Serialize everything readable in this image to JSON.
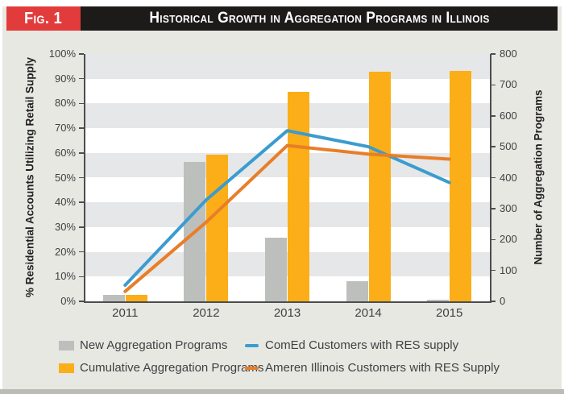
{
  "figure": {
    "tag": "Fig. 1",
    "title": "Historical Growth in Aggregation Programs in Illinois"
  },
  "colors": {
    "header_bar": "#1D1B1A",
    "fig_tag_red": "#E23B3B",
    "background_gray": "#E7E8E2",
    "plot_stripe_gray": "#E6E7E8",
    "axis_text": "#414042"
  },
  "chart_data": {
    "type": "bar",
    "subtype": "combo bar + line, dual y-axes",
    "categories": [
      "2011",
      "2012",
      "2013",
      "2014",
      "2015"
    ],
    "left_axis": {
      "label": "% Residential Accounts Utilizing Retail Supply",
      "min": 0,
      "max": 100,
      "step": 10,
      "tick_suffix": "%",
      "tick_labels": [
        "0%",
        "10%",
        "20%",
        "30%",
        "40%",
        "50%",
        "60%",
        "70%",
        "80%",
        "90%",
        "100%"
      ]
    },
    "right_axis": {
      "label": "Number of Aggregation Programs",
      "min": 0,
      "max": 800,
      "step": 100,
      "tick_labels": [
        "0",
        "100",
        "200",
        "300",
        "400",
        "500",
        "600",
        "700",
        "800"
      ]
    },
    "bar_series": [
      {
        "name": "New Aggregation Programs",
        "axis": "right",
        "color": "#BDBFBD",
        "values": [
          20,
          451,
          207,
          66,
          5
        ]
      },
      {
        "name": "Cumulative Aggregation Programs",
        "axis": "right",
        "color": "#FBAE17",
        "values": [
          20,
          475,
          677,
          743,
          745
        ]
      }
    ],
    "line_series": [
      {
        "name": "ComEd Customers with RES supply",
        "axis": "left",
        "color": "#3A9CD0",
        "values_percent": [
          6.5,
          41,
          69,
          62.5,
          48
        ]
      },
      {
        "name": "Ameren Illinois Customers with RES Supply",
        "axis": "left",
        "color": "#E87E27",
        "values_percent": [
          4,
          32,
          63,
          59.5,
          57.5
        ]
      }
    ],
    "layout_hints": {
      "gridlines": "alternating horizontal gray bands every 10% (gray on 10-20, 30-40, 50-60, 70-80, 90-100)",
      "legend_position": "below chart, two columns",
      "bars_share_category": "new (gray) left of center, cumulative (orange) right of center"
    }
  },
  "legend": {
    "items": [
      {
        "swatch": "gray-square"
      },
      {
        "swatch": "orange-square"
      },
      {
        "swatch": "blue-line"
      },
      {
        "swatch": "orange-line"
      }
    ]
  }
}
